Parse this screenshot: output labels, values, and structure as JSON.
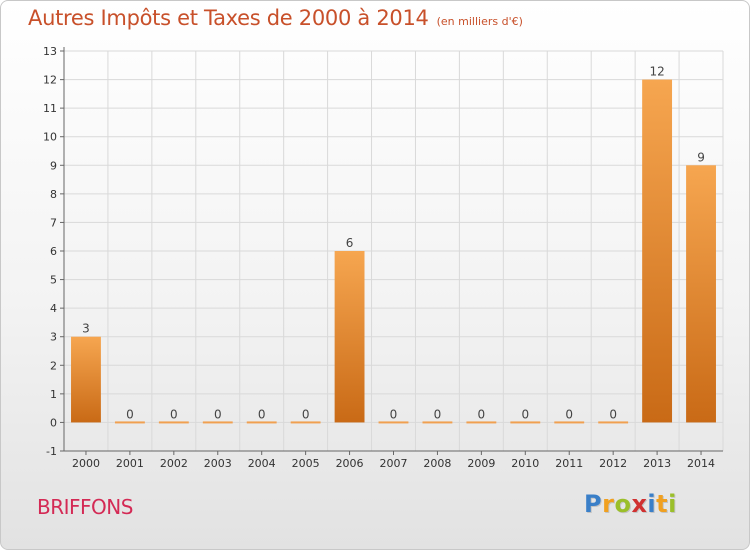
{
  "header": {
    "title": "Autres Impôts et Taxes de 2000 à 2014",
    "subtitle": "(en milliers d'€)"
  },
  "commune": "BRIFFONS",
  "logo": {
    "text": "Proxiti",
    "letters": [
      "P",
      "r",
      "o",
      "x",
      "i",
      "t",
      "i"
    ],
    "colors": [
      "#3a7fc8",
      "#f0a020",
      "#9bbf2a",
      "#d03030",
      "#3a7fc8",
      "#f0a020",
      "#9bbf2a"
    ]
  },
  "chart_data": {
    "type": "bar",
    "categories": [
      "2000",
      "2001",
      "2002",
      "2003",
      "2004",
      "2005",
      "2006",
      "2007",
      "2008",
      "2009",
      "2010",
      "2011",
      "2012",
      "2013",
      "2014"
    ],
    "values": [
      3,
      0,
      0,
      0,
      0,
      0,
      6,
      0,
      0,
      0,
      0,
      0,
      0,
      12,
      9
    ],
    "data_labels": [
      "3",
      "0",
      "0",
      "0",
      "0",
      "0",
      "6",
      "0",
      "0",
      "0",
      "0",
      "0",
      "0",
      "12",
      "9"
    ],
    "ylim": [
      -1,
      13
    ],
    "yticks": [
      "-1",
      "0",
      "1",
      "2",
      "3",
      "4",
      "5",
      "6",
      "7",
      "8",
      "9",
      "10",
      "11",
      "12",
      "13"
    ],
    "colors": {
      "bar_light": "#f6a650",
      "bar_dark": "#c96a16",
      "grid": "#d9d9d9",
      "axis": "#666666"
    }
  }
}
